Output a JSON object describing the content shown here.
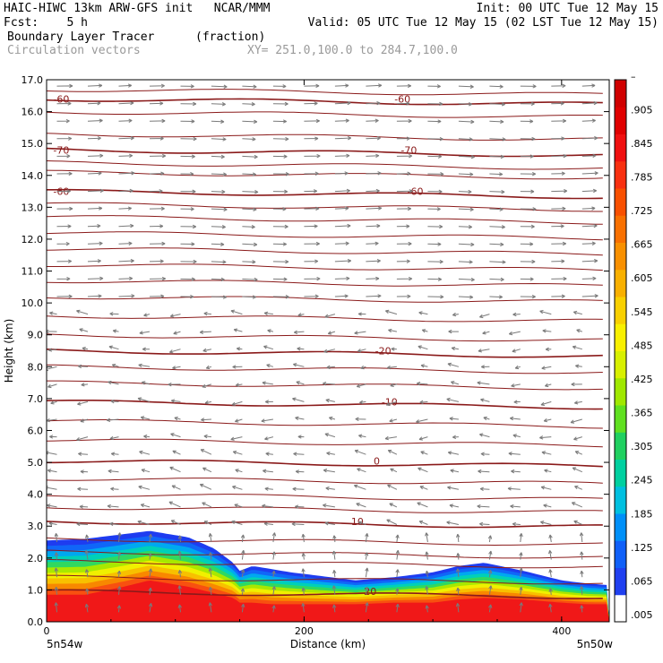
{
  "header": {
    "line1_left": "HAIC-HIWC 13km ARW-GFS init   NCAR/MMM",
    "line1_right": "Init: 00 UTC Tue 12 May 15",
    "line2_left": "Fcst:    5 h",
    "line2_right": "Valid: 05 UTC Tue 12 May 15 (02 LST Tue 12 May 15)",
    "field_name": "Boundary Layer Tracer",
    "field_units": "(fraction)",
    "vector_name": "Circulation vectors",
    "xy_range": "XY= 251.0,100.0 to 284.7,100.0"
  },
  "chart_data": {
    "type": "heatmap",
    "xlabel": "Distance (km)",
    "ylabel": "Height (km)",
    "xlim": [
      0,
      437
    ],
    "ylim": [
      0,
      17
    ],
    "x_ticks": [
      "0",
      "200",
      "400"
    ],
    "y_ticks": [
      "0.0",
      "1.0",
      "2.0",
      "3.0",
      "4.0",
      "5.0",
      "6.0",
      "7.0",
      "8.0",
      "9.0",
      "10.0",
      "11.0",
      "12.0",
      "13.0",
      "14.0",
      "15.0",
      "16.0",
      "17.0"
    ],
    "left_location": "5n54w",
    "right_location": "5n50w",
    "colorbar": {
      "levels": [
        ".005",
        ".065",
        ".125",
        ".185",
        ".245",
        ".305",
        ".365",
        ".425",
        ".485",
        ".545",
        ".605",
        ".665",
        ".725",
        ".785",
        ".845",
        ".905",
        "–"
      ],
      "colors": [
        "#ffffff",
        "#2040f0",
        "#1060f8",
        "#0090f8",
        "#00c0e0",
        "#00d0a0",
        "#20d060",
        "#60e020",
        "#a0e800",
        "#d8f000",
        "#f8f000",
        "#f8d000",
        "#f8b000",
        "#f89000",
        "#f87000",
        "#f85000",
        "#f83010",
        "#f01010",
        "#e00000",
        "#d00000"
      ]
    },
    "tracer_top_profile": {
      "x_km": [
        0,
        30,
        60,
        80,
        110,
        130,
        145,
        150,
        160,
        175,
        190,
        210,
        240,
        270,
        300,
        320,
        340,
        370,
        400,
        420,
        437
      ],
      "top_km": [
        2.55,
        2.6,
        2.75,
        2.85,
        2.65,
        2.3,
        1.85,
        1.6,
        1.75,
        1.65,
        1.55,
        1.45,
        1.3,
        1.4,
        1.55,
        1.75,
        1.85,
        1.6,
        1.3,
        1.2,
        1.15
      ],
      "core_top_km": [
        0.85,
        0.85,
        1.1,
        1.3,
        1.1,
        0.9,
        0.75,
        0.6,
        0.6,
        0.55,
        0.55,
        0.55,
        0.55,
        0.6,
        0.6,
        0.7,
        0.75,
        0.7,
        0.6,
        0.55,
        0.55
      ]
    },
    "temperature_contours": [
      {
        "label": "-60",
        "height_km": 16.4,
        "labels_at_km": [
          10,
          275
        ]
      },
      {
        "label": "-70",
        "height_km": 14.8,
        "labels_at_km": [
          10,
          280
        ]
      },
      {
        "label": "-60",
        "height_km": 13.5,
        "labels_at_km": [
          10,
          285
        ]
      },
      {
        "label": "-20",
        "height_km": 8.5,
        "labels_at_km": [
          260
        ]
      },
      {
        "label": "-10",
        "height_km": 6.9,
        "labels_at_km": [
          265
        ]
      },
      {
        "label": "0",
        "height_km": 5.05,
        "labels_at_km": [
          255
        ]
      },
      {
        "label": "10",
        "height_km": 3.15,
        "labels_at_km": [
          240
        ]
      },
      {
        "label": "20",
        "height_km": 0.95,
        "labels_at_km": [
          250
        ]
      }
    ],
    "unlabeled_contour_heights_km": [
      16.7,
      16.0,
      15.3,
      14.4,
      14.1,
      13.1,
      12.7,
      12.2,
      11.7,
      11.2,
      10.7,
      10.2,
      9.6,
      9.0,
      8.0,
      7.5,
      6.3,
      5.7,
      4.5,
      4.0,
      3.6,
      2.6,
      2.2,
      1.9,
      1.4
    ]
  }
}
